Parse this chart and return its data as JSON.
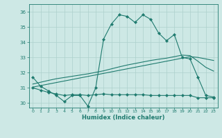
{
  "xlabel": "Humidex (Indice chaleur)",
  "background_color": "#cde8e5",
  "grid_color": "#add0cc",
  "line_color": "#1e7a6e",
  "xlim": [
    -0.5,
    23.5
  ],
  "ylim": [
    29.7,
    36.5
  ],
  "xticks": [
    0,
    1,
    2,
    3,
    4,
    5,
    6,
    7,
    8,
    9,
    10,
    11,
    12,
    13,
    14,
    15,
    16,
    17,
    18,
    19,
    20,
    21,
    22,
    23
  ],
  "yticks": [
    30,
    31,
    32,
    33,
    34,
    35,
    36
  ],
  "series1_x": [
    0,
    1,
    2,
    3,
    4,
    5,
    6,
    7,
    8,
    9,
    10,
    11,
    12,
    13,
    14,
    15,
    16,
    17,
    18,
    19,
    20,
    21,
    22,
    23
  ],
  "series1_y": [
    31.7,
    31.1,
    30.8,
    30.5,
    30.1,
    30.5,
    30.5,
    29.8,
    31.0,
    34.2,
    35.2,
    35.8,
    35.7,
    35.3,
    35.8,
    35.5,
    34.6,
    34.1,
    34.5,
    33.0,
    32.9,
    31.7,
    30.5,
    30.4
  ],
  "series2_x": [
    0,
    1,
    2,
    3,
    4,
    5,
    6,
    7,
    8,
    9,
    10,
    11,
    12,
    13,
    14,
    15,
    16,
    17,
    18,
    19,
    20,
    21,
    22,
    23
  ],
  "series2_y": [
    31.0,
    30.85,
    30.7,
    30.6,
    30.5,
    30.55,
    30.55,
    30.5,
    30.55,
    30.6,
    30.55,
    30.55,
    30.55,
    30.55,
    30.55,
    30.5,
    30.5,
    30.5,
    30.5,
    30.5,
    30.5,
    30.35,
    30.35,
    30.35
  ],
  "series3_x": [
    0,
    1,
    2,
    3,
    4,
    5,
    6,
    7,
    8,
    9,
    10,
    11,
    12,
    13,
    14,
    15,
    16,
    17,
    18,
    19,
    20,
    21,
    22,
    23
  ],
  "series3_y": [
    31.05,
    31.15,
    31.25,
    31.35,
    31.45,
    31.55,
    31.65,
    31.75,
    31.85,
    31.95,
    32.05,
    32.15,
    32.25,
    32.35,
    32.45,
    32.55,
    32.65,
    32.75,
    32.85,
    32.95,
    33.05,
    33.0,
    32.9,
    32.8
  ],
  "series4_x": [
    0,
    1,
    2,
    3,
    4,
    5,
    6,
    7,
    8,
    9,
    10,
    11,
    12,
    13,
    14,
    15,
    16,
    17,
    18,
    19,
    20,
    21,
    22,
    23
  ],
  "series4_y": [
    31.25,
    31.37,
    31.49,
    31.6,
    31.68,
    31.76,
    31.84,
    31.92,
    32.02,
    32.12,
    32.25,
    32.38,
    32.5,
    32.6,
    32.7,
    32.8,
    32.88,
    32.95,
    33.05,
    33.15,
    33.12,
    32.75,
    32.35,
    32.1
  ]
}
